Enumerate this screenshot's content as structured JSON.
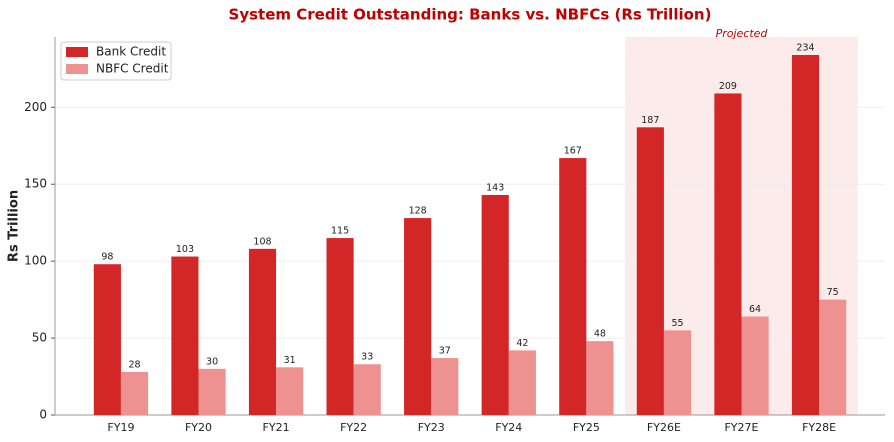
{
  "chart_data": {
    "type": "bar",
    "title": "System Credit Outstanding: Banks vs. NBFCs (Rs Trillion)",
    "y_label": "Rs Trillion",
    "categories": [
      "FY19",
      "FY20",
      "FY21",
      "FY22",
      "FY23",
      "FY24",
      "FY25",
      "FY26E",
      "FY27E",
      "FY28E"
    ],
    "series": [
      {
        "name": "Bank Credit",
        "color": "#d32627",
        "values": [
          98,
          103,
          108,
          115,
          128,
          143,
          167,
          187,
          209,
          234
        ]
      },
      {
        "name": "NBFC Credit",
        "color": "#ee9191",
        "values": [
          28,
          30,
          31,
          33,
          37,
          42,
          48,
          55,
          64,
          75
        ]
      }
    ],
    "ylim": [
      0,
      245.7
    ],
    "yticks": [
      0,
      50,
      100,
      150,
      200
    ],
    "grid": true,
    "legend": "upper left",
    "annotation": {
      "text": "Projected",
      "range": [
        "FY26E",
        "FY28E"
      ],
      "color": "#fbe6e6"
    }
  }
}
